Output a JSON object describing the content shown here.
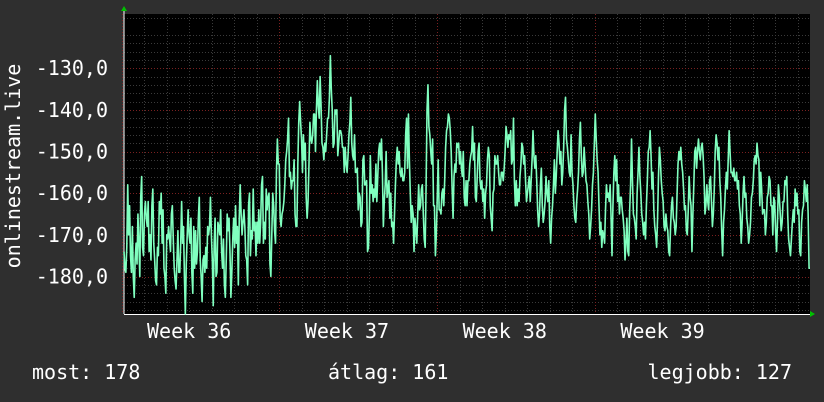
{
  "chart_data": {
    "type": "line",
    "title": "",
    "ylabel": "onlinestream.live",
    "ylim": [
      -189,
      -117
    ],
    "xlim": [
      0,
      100
    ],
    "grid": true,
    "y_ticks": [
      -130,
      -140,
      -150,
      -160,
      -170,
      -180
    ],
    "y_tick_labels": [
      "-130,0",
      "-140,0",
      "-150,0",
      "-160,0",
      "-170,0",
      "-180,0"
    ],
    "x_ticks": [
      {
        "x": 9.5,
        "label": "Week 36"
      },
      {
        "x": 32.5,
        "label": "Week 37"
      },
      {
        "x": 55.5,
        "label": "Week 38"
      },
      {
        "x": 78.5,
        "label": "Week 39"
      }
    ],
    "line_color": "#80ffbf",
    "series": [
      {
        "name": "",
        "values": [
          -174,
          -178,
          -179,
          -173,
          -158,
          -170,
          -163,
          -175,
          -179,
          -168,
          -180,
          -185,
          -176,
          -172,
          -177,
          -165,
          -172,
          -180,
          -161,
          -156,
          -173,
          -175,
          -165,
          -162,
          -166,
          -168,
          -162,
          -174,
          -170,
          -176,
          -163,
          -159,
          -172,
          -176,
          -181,
          -182,
          -173,
          -175,
          -162,
          -165,
          -160,
          -172,
          -164,
          -178,
          -180,
          -184,
          -170,
          -171,
          -168,
          -171,
          -174,
          -165,
          -163,
          -171,
          -178,
          -181,
          -183,
          -176,
          -169,
          -179,
          -179,
          -172,
          -162,
          -172,
          -168,
          -180,
          -189,
          -177,
          -170,
          -164,
          -170,
          -172,
          -166,
          -179,
          -184,
          -168,
          -178,
          -169,
          -177,
          -174,
          -166,
          -161,
          -176,
          -180,
          -186,
          -176,
          -175,
          -179,
          -173,
          -178,
          -168,
          -170,
          -168,
          -161,
          -170,
          -176,
          -187,
          -172,
          -166,
          -180,
          -179,
          -167,
          -168,
          -170,
          -164,
          -174,
          -178,
          -171,
          -182,
          -185,
          -176,
          -165,
          -169,
          -166,
          -174,
          -185,
          -179,
          -171,
          -166,
          -173,
          -163,
          -172,
          -168,
          -182,
          -166,
          -158,
          -165,
          -170,
          -167,
          -164,
          -168,
          -175,
          -176,
          -182,
          -163,
          -160,
          -175,
          -169,
          -171,
          -159,
          -169,
          -167,
          -175,
          -167,
          -172,
          -164,
          -172,
          -167,
          -158,
          -156,
          -172,
          -167,
          -171,
          -159,
          -164,
          -161,
          -160,
          -177,
          -180,
          -170,
          -160,
          -163,
          -169,
          -172,
          -155,
          -147,
          -153,
          -153,
          -166,
          -168,
          -165,
          -164,
          -162,
          -158,
          -152,
          -150,
          -147,
          -142,
          -156,
          -155,
          -159,
          -157,
          -157,
          -152,
          -165,
          -168,
          -168,
          -153,
          -143,
          -138,
          -143,
          -147,
          -155,
          -146,
          -152,
          -148,
          -161,
          -166,
          -162,
          -153,
          -143,
          -147,
          -148,
          -146,
          -141,
          -141,
          -150,
          -140,
          -133,
          -139,
          -142,
          -132,
          -139,
          -148,
          -149,
          -152,
          -148,
          -150,
          -146,
          -142,
          -142,
          -137,
          -127,
          -135,
          -140,
          -149,
          -148,
          -140,
          -141,
          -140,
          -151,
          -148,
          -145,
          -145,
          -146,
          -149,
          -149,
          -155,
          -149,
          -153,
          -155,
          -151,
          -146,
          -143,
          -137,
          -148,
          -151,
          -152,
          -146,
          -155,
          -155,
          -154,
          -164,
          -160,
          -161,
          -168,
          -167,
          -152,
          -151,
          -158,
          -158,
          -157,
          -174,
          -173,
          -165,
          -151,
          -160,
          -158,
          -162,
          -159,
          -161,
          -153,
          -162,
          -156,
          -150,
          -148,
          -152,
          -147,
          -155,
          -168,
          -162,
          -158,
          -150,
          -161,
          -159,
          -157,
          -166,
          -160,
          -168,
          -167,
          -172,
          -165,
          -158,
          -152,
          -149,
          -153,
          -150,
          -155,
          -156,
          -154,
          -157,
          -157,
          -155,
          -146,
          -142,
          -154,
          -141,
          -152,
          -160,
          -167,
          -163,
          -165,
          -174,
          -166,
          -169,
          -172,
          -165,
          -158,
          -164,
          -163,
          -159,
          -158,
          -165,
          -171,
          -173,
          -158,
          -140,
          -134,
          -144,
          -146,
          -150,
          -153,
          -147,
          -163,
          -163,
          -175,
          -170,
          -161,
          -152,
          -164,
          -164,
          -165,
          -160,
          -159,
          -163,
          -157,
          -149,
          -145,
          -144,
          -141,
          -142,
          -145,
          -150,
          -159,
          -166,
          -156,
          -153,
          -155,
          -148,
          -149,
          -148,
          -153,
          -150,
          -154,
          -156,
          -150,
          -161,
          -163,
          -157,
          -163,
          -157,
          -157,
          -153,
          -151,
          -150,
          -144,
          -152,
          -148,
          -161,
          -162,
          -156,
          -150,
          -148,
          -157,
          -159,
          -157,
          -162,
          -159,
          -166,
          -160,
          -158,
          -152,
          -149,
          -151,
          -163,
          -166,
          -169,
          -160,
          -159,
          -151,
          -153,
          -153,
          -151,
          -155,
          -158,
          -158,
          -155,
          -155,
          -157,
          -154,
          -150,
          -144,
          -146,
          -149,
          -146,
          -147,
          -145,
          -153,
          -152,
          -142,
          -157,
          -163,
          -157,
          -163,
          -159,
          -162,
          -156,
          -153,
          -148,
          -149,
          -153,
          -151,
          -157,
          -162,
          -160,
          -158,
          -156,
          -162,
          -157,
          -152,
          -145,
          -151,
          -154,
          -151,
          -157,
          -164,
          -168,
          -165,
          -158,
          -154,
          -163,
          -167,
          -165,
          -162,
          -156,
          -160,
          -162,
          -157,
          -168,
          -172,
          -166,
          -163,
          -158,
          -152,
          -160,
          -156,
          -150,
          -145,
          -148,
          -153,
          -150,
          -158,
          -155,
          -149,
          -140,
          -137,
          -147,
          -149,
          -152,
          -155,
          -156,
          -146,
          -155,
          -158,
          -163,
          -166,
          -167,
          -162,
          -159,
          -155,
          -147,
          -143,
          -151,
          -156,
          -155,
          -149,
          -153,
          -157,
          -158,
          -162,
          -165,
          -171,
          -168,
          -164,
          -158,
          -155,
          -148,
          -141,
          -147,
          -152,
          -155,
          -163,
          -170,
          -167,
          -173,
          -169,
          -170,
          -172,
          -164,
          -158,
          -161,
          -160,
          -162,
          -158,
          -166,
          -175,
          -163,
          -155,
          -151,
          -157,
          -152,
          -162,
          -158,
          -165,
          -161,
          -161,
          -164,
          -166,
          -169,
          -176,
          -172,
          -166,
          -174,
          -175,
          -164,
          -158,
          -147,
          -157,
          -165,
          -166,
          -168,
          -171,
          -160,
          -155,
          -149,
          -156,
          -160,
          -165,
          -167,
          -170,
          -167,
          -171,
          -163,
          -157,
          -150,
          -149,
          -145,
          -151,
          -159,
          -155,
          -164,
          -168,
          -170,
          -173,
          -166,
          -156,
          -149,
          -152,
          -157,
          -160,
          -162,
          -168,
          -169,
          -165,
          -168,
          -169,
          -174,
          -175,
          -168,
          -163,
          -161,
          -166,
          -167,
          -170,
          -168,
          -160,
          -153,
          -150,
          -152,
          -149,
          -153,
          -155,
          -159,
          -164,
          -163,
          -169,
          -170,
          -164,
          -156,
          -161,
          -163,
          -174,
          -165,
          -158,
          -150,
          -149,
          -154,
          -150,
          -147,
          -150,
          -152,
          -149,
          -148,
          -151,
          -156,
          -165,
          -163,
          -158,
          -162,
          -164,
          -157,
          -156,
          -162,
          -168,
          -165,
          -159,
          -150,
          -146,
          -148,
          -152,
          -149,
          -157,
          -161,
          -169,
          -175,
          -167,
          -164,
          -159,
          -155,
          -159,
          -152,
          -145,
          -150,
          -155,
          -155,
          -156,
          -154,
          -157,
          -157,
          -155,
          -159,
          -157,
          -163,
          -165,
          -172,
          -167,
          -160,
          -156,
          -161,
          -160,
          -166,
          -168,
          -172,
          -170,
          -167,
          -161,
          -160,
          -157,
          -152,
          -151,
          -153,
          -148,
          -151,
          -152,
          -163,
          -155,
          -159,
          -165,
          -164,
          -164,
          -170,
          -167,
          -161,
          -160,
          -156,
          -157,
          -163,
          -163,
          -170,
          -161,
          -162,
          -169,
          -174,
          -167,
          -158,
          -161,
          -165,
          -169,
          -167,
          -162,
          -162,
          -157,
          -158,
          -156,
          -165,
          -171,
          -173,
          -175,
          -171,
          -167,
          -164,
          -167,
          -159,
          -163,
          -160,
          -165,
          -164,
          -174,
          -175,
          -167,
          -164,
          -163,
          -157,
          -159,
          -162,
          -158,
          -165,
          -178,
          -178
        ]
      }
    ]
  },
  "footer": {
    "current": "most: 178",
    "average": "átlag: 161",
    "max": "legjobb: 127"
  }
}
